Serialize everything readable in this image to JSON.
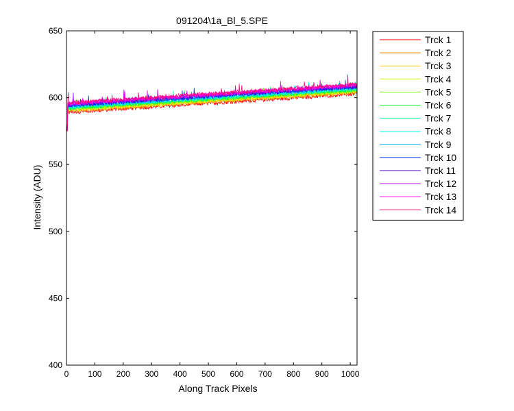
{
  "chart_data": {
    "type": "line",
    "title": "091204\\1a_Bl_5.SPE",
    "xlabel": "Along Track Pixels",
    "ylabel": "Intensity (ADU)",
    "xlim": [
      0,
      1024
    ],
    "ylim": [
      400,
      650
    ],
    "xticks": [
      0,
      100,
      200,
      300,
      400,
      500,
      600,
      700,
      800,
      900,
      1000
    ],
    "yticks": [
      400,
      450,
      500,
      550,
      600,
      650
    ],
    "legend_position": "outside-right",
    "grid": false,
    "x": [
      0,
      1024
    ],
    "series": [
      {
        "name": "Trck 1",
        "color": "#ff0000",
        "values": [
          589,
          603
        ]
      },
      {
        "name": "Trck 2",
        "color": "#ff7f00",
        "values": [
          590,
          604
        ]
      },
      {
        "name": "Trck 3",
        "color": "#ffd400",
        "values": [
          590.5,
          604.5
        ]
      },
      {
        "name": "Trck 4",
        "color": "#d4ff00",
        "values": [
          591,
          605
        ]
      },
      {
        "name": "Trck 5",
        "color": "#7fff00",
        "values": [
          591.5,
          605.5
        ]
      },
      {
        "name": "Trck 6",
        "color": "#00ff2a",
        "values": [
          592,
          606
        ]
      },
      {
        "name": "Trck 7",
        "color": "#00ff99",
        "values": [
          592.5,
          606.5
        ]
      },
      {
        "name": "Trck 8",
        "color": "#00ffe6",
        "values": [
          593,
          607
        ]
      },
      {
        "name": "Trck 9",
        "color": "#00aaff",
        "values": [
          593.5,
          607.5
        ]
      },
      {
        "name": "Trck 10",
        "color": "#0033ff",
        "values": [
          594,
          608
        ]
      },
      {
        "name": "Trck 11",
        "color": "#4400cc",
        "values": [
          594.5,
          608.5
        ]
      },
      {
        "name": "Trck 12",
        "color": "#aa00ff",
        "values": [
          595,
          609
        ]
      },
      {
        "name": "Trck 13",
        "color": "#ff00ee",
        "values": [
          595.5,
          609.5
        ]
      },
      {
        "name": "Trck 14",
        "color": "#ff0077",
        "values": [
          596,
          610
        ]
      }
    ]
  }
}
